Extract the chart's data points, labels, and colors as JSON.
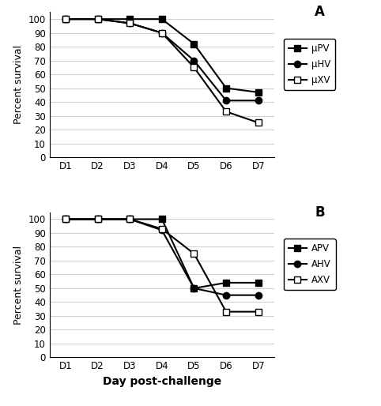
{
  "x_labels": [
    "D1",
    "D2",
    "D3",
    "D4",
    "D5",
    "D6",
    "D7"
  ],
  "x_vals": [
    1,
    2,
    3,
    4,
    5,
    6,
    7
  ],
  "panel_A": {
    "label": "A",
    "series": [
      {
        "name": "μPV",
        "values": [
          100,
          100,
          100,
          100,
          82,
          50,
          47
        ],
        "marker": "s",
        "color": "black",
        "fillstyle": "full"
      },
      {
        "name": "μHV",
        "values": [
          100,
          100,
          97,
          90,
          70,
          41,
          41
        ],
        "marker": "o",
        "color": "black",
        "fillstyle": "full"
      },
      {
        "name": "μXV",
        "values": [
          100,
          100,
          97,
          90,
          65,
          33,
          25
        ],
        "marker": "s",
        "color": "black",
        "fillstyle": "none"
      }
    ]
  },
  "panel_B": {
    "label": "B",
    "series": [
      {
        "name": "APV",
        "values": [
          100,
          100,
          100,
          100,
          50,
          54,
          54
        ],
        "marker": "s",
        "color": "black",
        "fillstyle": "full"
      },
      {
        "name": "AHV",
        "values": [
          100,
          100,
          100,
          92,
          50,
          45,
          45
        ],
        "marker": "o",
        "color": "black",
        "fillstyle": "full"
      },
      {
        "name": "AXV",
        "values": [
          100,
          100,
          100,
          93,
          75,
          33,
          33
        ],
        "marker": "s",
        "color": "black",
        "fillstyle": "none"
      }
    ]
  },
  "ylabel": "Percent survival",
  "xlabel": "Day post-challenge",
  "ylim": [
    0,
    105
  ],
  "yticks": [
    0,
    10,
    20,
    30,
    40,
    50,
    60,
    70,
    80,
    90,
    100
  ],
  "background_color": "#ffffff",
  "linewidth": 1.5,
  "markersize": 6,
  "grid_color": "#d0d0d0",
  "legend_fontsize": 8.5,
  "tick_fontsize": 8.5,
  "ylabel_fontsize": 9,
  "xlabel_fontsize": 10,
  "panel_label_fontsize": 12
}
